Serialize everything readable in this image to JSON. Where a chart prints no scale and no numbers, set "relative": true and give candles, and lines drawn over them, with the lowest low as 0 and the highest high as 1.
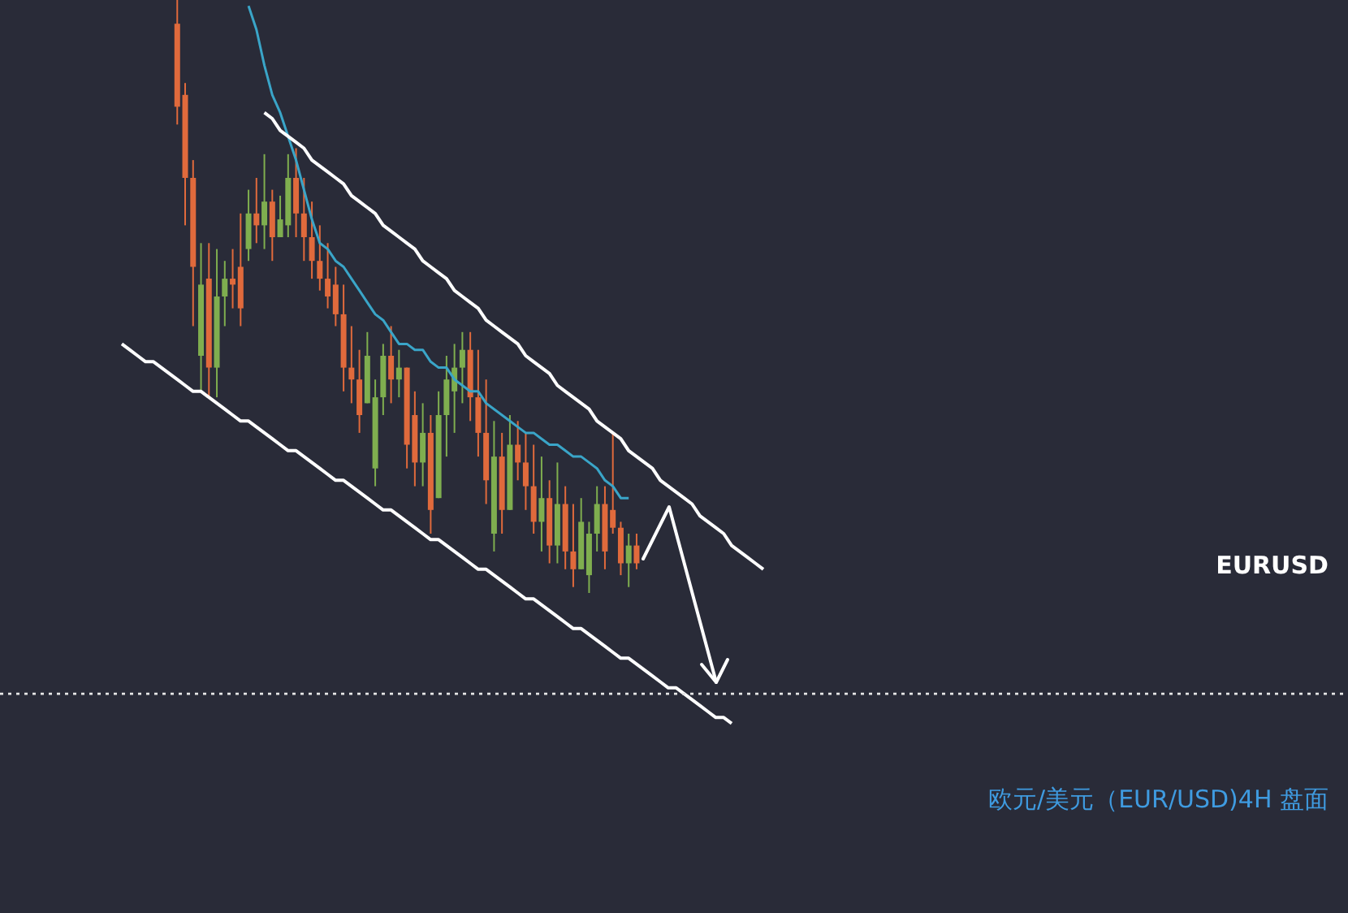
{
  "chart_data": {
    "type": "candlestick",
    "relative": true,
    "title": "欧元/美元（EUR/USD)4H 盘面",
    "annotations": [
      "EURUSD"
    ],
    "categories": [
      null,
      null,
      null,
      null,
      null,
      null,
      null,
      null,
      null,
      null,
      null,
      null,
      null,
      null,
      null,
      null,
      null,
      null,
      null,
      null,
      null,
      null,
      null,
      null,
      null,
      null,
      null,
      null,
      null,
      null,
      null,
      null,
      null,
      null,
      null,
      null,
      null,
      null,
      null,
      null,
      null,
      null,
      null,
      null,
      null,
      null,
      null,
      null,
      null,
      null,
      null,
      null,
      null,
      null,
      null,
      null,
      null,
      null,
      null,
      null,
      null,
      null,
      null,
      null,
      null,
      null,
      null,
      null,
      null,
      null,
      null,
      null,
      null,
      null,
      null,
      null,
      null,
      null,
      null,
      null,
      null,
      null
    ],
    "ref_lines": [
      {
        "axis": "y",
        "value": -0.17,
        "color": "#e6e6e6",
        "line_style": "dotted"
      }
    ],
    "series": [
      {
        "ohlc": [
          null,
          null,
          null,
          null,
          null,
          null,
          null,
          [
            0.96,
            1,
            0.79,
            0.82
          ],
          [
            0.84,
            0.86,
            0.62,
            0.7
          ],
          [
            0.7,
            0.73,
            0.45,
            0.55
          ],
          [
            0.4,
            0.59,
            0.34,
            0.52
          ],
          [
            0.53,
            0.59,
            0.33,
            0.38
          ],
          [
            0.38,
            0.58,
            0.33,
            0.5
          ],
          [
            0.5,
            0.56,
            0.45,
            0.53
          ],
          [
            0.53,
            0.58,
            0.48,
            0.52
          ],
          [
            0.55,
            0.64,
            0.45,
            0.48
          ],
          [
            0.58,
            0.68,
            0.56,
            0.64
          ],
          [
            0.64,
            0.7,
            0.59,
            0.62
          ],
          [
            0.62,
            0.74,
            0.58,
            0.66
          ],
          [
            0.66,
            0.68,
            0.56,
            0.6
          ],
          [
            0.6,
            0.67,
            0.6,
            0.63
          ],
          [
            0.62,
            0.74,
            0.6,
            0.7
          ],
          [
            0.7,
            0.75,
            0.6,
            0.64
          ],
          [
            0.64,
            0.7,
            0.56,
            0.6
          ],
          [
            0.6,
            0.66,
            0.53,
            0.56
          ],
          [
            0.56,
            0.62,
            0.51,
            0.53
          ],
          [
            0.53,
            0.59,
            0.48,
            0.5
          ],
          [
            0.52,
            0.55,
            0.45,
            0.47
          ],
          [
            0.47,
            0.52,
            0.34,
            0.38
          ],
          [
            0.38,
            0.45,
            0.32,
            0.36
          ],
          [
            0.36,
            0.41,
            0.27,
            0.3
          ],
          [
            0.32,
            0.44,
            0.32,
            0.4
          ],
          [
            0.21,
            0.36,
            0.18,
            0.33
          ],
          [
            0.33,
            0.42,
            0.3,
            0.4
          ],
          [
            0.4,
            0.45,
            0.32,
            0.36
          ],
          [
            0.36,
            0.41,
            0.33,
            0.38
          ],
          [
            0.38,
            0.38,
            0.21,
            0.25
          ],
          [
            0.3,
            0.34,
            0.18,
            0.22
          ],
          [
            0.22,
            0.32,
            0.18,
            0.27
          ],
          [
            0.27,
            0.3,
            0.1,
            0.14
          ],
          [
            0.16,
            0.34,
            0.16,
            0.3
          ],
          [
            0.3,
            0.4,
            0.23,
            0.36
          ],
          [
            0.34,
            0.42,
            0.27,
            0.38
          ],
          [
            0.38,
            0.44,
            0.32,
            0.41
          ],
          [
            0.41,
            0.44,
            0.29,
            0.33
          ],
          [
            0.33,
            0.41,
            0.23,
            0.27
          ],
          [
            0.27,
            0.36,
            0.15,
            0.19
          ],
          [
            0.1,
            0.29,
            0.07,
            0.23
          ],
          [
            0.23,
            0.27,
            0.1,
            0.14
          ],
          [
            0.14,
            0.3,
            0.14,
            0.25
          ],
          [
            0.25,
            0.29,
            0.19,
            0.22
          ],
          [
            0.22,
            0.27,
            0.14,
            0.18
          ],
          [
            0.18,
            0.25,
            0.1,
            0.12
          ],
          [
            0.12,
            0.23,
            0.07,
            0.16
          ],
          [
            0.16,
            0.19,
            0.05,
            0.08
          ],
          [
            0.08,
            0.22,
            0.05,
            0.15
          ],
          [
            0.15,
            0.18,
            0.04,
            0.07
          ],
          [
            0.07,
            0.15,
            0.01,
            0.04
          ],
          [
            0.04,
            0.16,
            0.04,
            0.12
          ],
          [
            0.03,
            0.12,
            0,
            0.1
          ],
          [
            0.1,
            0.18,
            0.07,
            0.15
          ],
          [
            0.15,
            0.18,
            0.04,
            0.07
          ],
          [
            0.14,
            0.27,
            0.1,
            0.11
          ],
          [
            0.11,
            0.12,
            0.03,
            0.05
          ],
          [
            0.05,
            0.1,
            0.01,
            0.08
          ],
          [
            0.08,
            0.1,
            0.04,
            0.05
          ],
          null,
          null,
          null,
          null,
          null,
          null,
          null,
          null,
          null,
          null,
          null,
          null,
          null,
          null,
          null,
          null
        ],
        "colors": [
          null,
          null,
          null,
          null,
          null,
          null,
          null,
          "#e06a3c",
          "#e06a3c",
          "#e06a3c",
          "#7fae4f",
          "#e06a3c",
          "#7fae4f",
          "#7fae4f",
          "#e06a3c",
          "#e06a3c",
          "#7fae4f",
          "#e06a3c",
          "#7fae4f",
          "#e06a3c",
          "#7fae4f",
          "#7fae4f",
          "#e06a3c",
          "#e06a3c",
          "#e06a3c",
          "#e06a3c",
          "#e06a3c",
          "#e06a3c",
          "#e06a3c",
          "#e06a3c",
          "#e06a3c",
          "#7fae4f",
          "#7fae4f",
          "#7fae4f",
          "#e06a3c",
          "#7fae4f",
          "#e06a3c",
          "#e06a3c",
          "#7fae4f",
          "#e06a3c",
          "#7fae4f",
          "#7fae4f",
          "#7fae4f",
          "#7fae4f",
          "#e06a3c",
          "#e06a3c",
          "#e06a3c",
          "#7fae4f",
          "#e06a3c",
          "#7fae4f",
          "#e06a3c",
          "#e06a3c",
          "#e06a3c",
          "#7fae4f",
          "#e06a3c",
          "#7fae4f",
          "#e06a3c",
          "#e06a3c",
          "#7fae4f",
          "#7fae4f",
          "#7fae4f",
          "#e06a3c",
          "#e06a3c",
          "#e06a3c",
          "#7fae4f",
          "#e06a3c",
          null,
          null,
          null,
          null,
          null,
          null,
          null,
          null,
          null,
          null,
          null,
          null,
          null,
          null,
          null,
          null
        ]
      },
      {
        "type": "line",
        "color": "#3aa5c8",
        "values": [
          null,
          null,
          null,
          null,
          null,
          null,
          null,
          null,
          null,
          null,
          null,
          null,
          null,
          null,
          null,
          null,
          0.99,
          0.95,
          0.89,
          0.84,
          0.81,
          0.77,
          0.73,
          0.68,
          0.63,
          0.59,
          0.58,
          0.56,
          0.55,
          0.53,
          0.51,
          0.49,
          0.47,
          0.46,
          0.44,
          0.42,
          0.42,
          0.41,
          0.41,
          0.39,
          0.38,
          0.38,
          0.36,
          0.35,
          0.34,
          0.34,
          0.32,
          0.31,
          0.3,
          0.29,
          0.28,
          0.27,
          0.27,
          0.26,
          0.25,
          0.25,
          0.24,
          0.23,
          0.23,
          0.22,
          0.21,
          0.19,
          0.18,
          0.16,
          0.16,
          null,
          null,
          null,
          null,
          null,
          null,
          null,
          null,
          null,
          null,
          null,
          null,
          null,
          null,
          null,
          null,
          null
        ]
      },
      {
        "type": "line",
        "color": "#ffffff",
        "values": [
          null,
          null,
          null,
          null,
          null,
          null,
          null,
          null,
          null,
          null,
          null,
          null,
          null,
          null,
          null,
          null,
          null,
          null,
          0.81,
          0.8,
          0.78,
          0.77,
          0.76,
          0.75,
          0.73,
          0.72,
          0.71,
          0.7,
          0.69,
          0.67,
          0.66,
          0.65,
          0.64,
          0.62,
          0.61,
          0.6,
          0.59,
          0.58,
          0.56,
          0.55,
          0.54,
          0.53,
          0.51,
          0.5,
          0.49,
          0.48,
          0.46,
          0.45,
          0.44,
          0.43,
          0.42,
          0.4,
          0.39,
          0.38,
          0.37,
          0.35,
          0.34,
          0.33,
          0.32,
          0.31,
          0.29,
          0.28,
          0.27,
          0.26,
          0.24,
          0.23,
          0.22,
          0.21,
          0.19,
          0.18,
          0.17,
          0.16,
          0.15,
          0.13,
          0.12,
          0.11,
          0.1,
          0.08,
          0.07,
          0.06,
          0.05,
          0.04
        ]
      },
      {
        "type": "line",
        "color": "#ffffff",
        "values": [
          0.42,
          0.41,
          0.4,
          0.39,
          0.39,
          0.38,
          0.37,
          0.36,
          0.35,
          0.34,
          0.34,
          0.33,
          0.32,
          0.31,
          0.3,
          0.29,
          0.29,
          0.28,
          0.27,
          0.26,
          0.25,
          0.24,
          0.24,
          0.23,
          0.22,
          0.21,
          0.2,
          0.19,
          0.19,
          0.18,
          0.17,
          0.16,
          0.15,
          0.14,
          0.14,
          0.13,
          0.12,
          0.11,
          0.1,
          0.09,
          0.09,
          0.08,
          0.07,
          0.06,
          0.05,
          0.04,
          0.04,
          0.03,
          0.02,
          0.01,
          0.0,
          -0.01,
          -0.01,
          -0.02,
          -0.03,
          -0.04,
          -0.05,
          -0.06,
          -0.06,
          -0.07,
          -0.08,
          -0.09,
          -0.1,
          -0.11,
          -0.11,
          -0.12,
          -0.13,
          -0.14,
          -0.15,
          -0.16,
          -0.16,
          -0.17,
          -0.18,
          -0.19,
          -0.2,
          -0.21,
          -0.21,
          -0.22,
          null,
          null,
          null,
          null
        ]
      }
    ]
  }
}
